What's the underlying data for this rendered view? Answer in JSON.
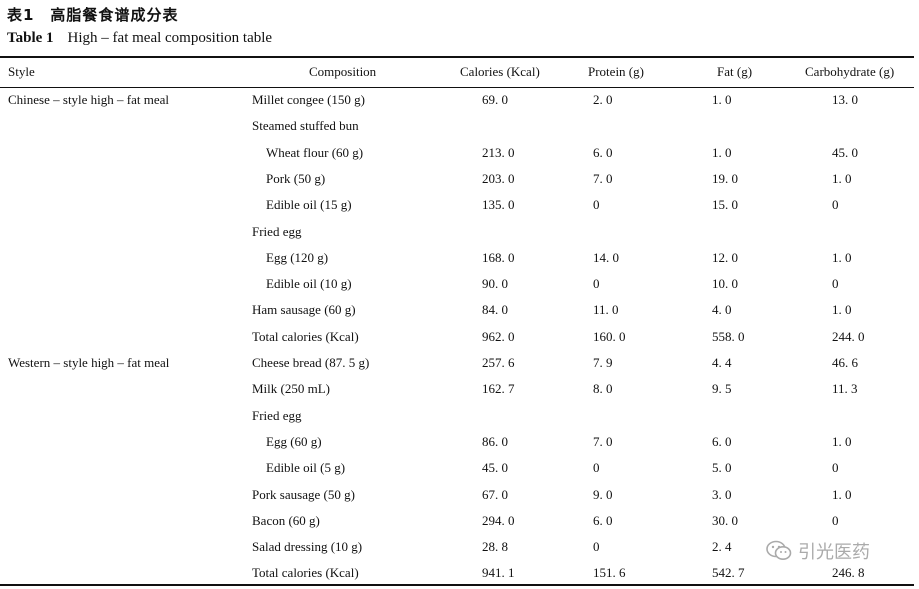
{
  "caption": {
    "cn": "表1　高脂餐食谱成分表",
    "en_label": "Table 1",
    "en_title": "High – fat meal composition table"
  },
  "columns": [
    "Style",
    "Composition",
    "Calories (Kcal)",
    "Protein (g)",
    "Fat (g)",
    "Carbohydrate (g)"
  ],
  "rows": [
    {
      "style": "Chinese – style high – fat meal",
      "comp": "Millet congee (150 g)",
      "indent": false,
      "cal": "69. 0",
      "pro": "2. 0",
      "fat": "1. 0",
      "carb": "13. 0"
    },
    {
      "style": "",
      "comp": "Steamed stuffed bun",
      "indent": false,
      "cal": "",
      "pro": "",
      "fat": "",
      "carb": ""
    },
    {
      "style": "",
      "comp": "Wheat flour (60 g)",
      "indent": true,
      "cal": "213. 0",
      "pro": "6. 0",
      "fat": "1. 0",
      "carb": "45. 0"
    },
    {
      "style": "",
      "comp": "Pork (50 g)",
      "indent": true,
      "cal": "203. 0",
      "pro": "7. 0",
      "fat": "19. 0",
      "carb": "1. 0"
    },
    {
      "style": "",
      "comp": "Edible oil (15 g)",
      "indent": true,
      "cal": "135. 0",
      "pro": "0",
      "fat": "15. 0",
      "carb": "0"
    },
    {
      "style": "",
      "comp": "Fried egg",
      "indent": false,
      "cal": "",
      "pro": "",
      "fat": "",
      "carb": ""
    },
    {
      "style": "",
      "comp": "Egg (120 g)",
      "indent": true,
      "cal": "168. 0",
      "pro": "14. 0",
      "fat": "12. 0",
      "carb": "1. 0"
    },
    {
      "style": "",
      "comp": "Edible oil (10 g)",
      "indent": true,
      "cal": "90. 0",
      "pro": "0",
      "fat": "10. 0",
      "carb": "0"
    },
    {
      "style": "",
      "comp": "Ham sausage (60 g)",
      "indent": false,
      "cal": "84. 0",
      "pro": "11. 0",
      "fat": "4. 0",
      "carb": "1. 0"
    },
    {
      "style": "",
      "comp": "Total calories (Kcal)",
      "indent": false,
      "cal": "962. 0",
      "pro": "160. 0",
      "fat": "558. 0",
      "carb": "244. 0"
    },
    {
      "style": "Western – style high – fat meal",
      "comp": "Cheese bread (87. 5 g)",
      "indent": false,
      "cal": "257. 6",
      "pro": "7. 9",
      "fat": "4. 4",
      "carb": "46. 6"
    },
    {
      "style": "",
      "comp": "Milk (250 mL)",
      "indent": false,
      "cal": "162. 7",
      "pro": "8. 0",
      "fat": "9. 5",
      "carb": "11. 3"
    },
    {
      "style": "",
      "comp": "Fried egg",
      "indent": false,
      "cal": "",
      "pro": "",
      "fat": "",
      "carb": ""
    },
    {
      "style": "",
      "comp": "Egg (60 g)",
      "indent": true,
      "cal": "86. 0",
      "pro": "7. 0",
      "fat": "6. 0",
      "carb": "1. 0"
    },
    {
      "style": "",
      "comp": "Edible oil (5 g)",
      "indent": true,
      "cal": "45. 0",
      "pro": "0",
      "fat": "5. 0",
      "carb": "0"
    },
    {
      "style": "",
      "comp": "Pork sausage (50 g)",
      "indent": false,
      "cal": "67. 0",
      "pro": "9. 0",
      "fat": "3. 0",
      "carb": "1. 0"
    },
    {
      "style": "",
      "comp": "Bacon (60 g)",
      "indent": false,
      "cal": "294. 0",
      "pro": "6. 0",
      "fat": "30. 0",
      "carb": "0"
    },
    {
      "style": "",
      "comp": "Salad dressing (10 g)",
      "indent": false,
      "cal": "28. 8",
      "pro": "0",
      "fat": "2. 4",
      "carb": ""
    },
    {
      "style": "",
      "comp": "Total calories (Kcal)",
      "indent": false,
      "cal": "941. 1",
      "pro": "151. 6",
      "fat": "542. 7",
      "carb": "246. 8"
    }
  ],
  "watermark": {
    "text": "引光医药",
    "icon": "wechat-icon"
  }
}
